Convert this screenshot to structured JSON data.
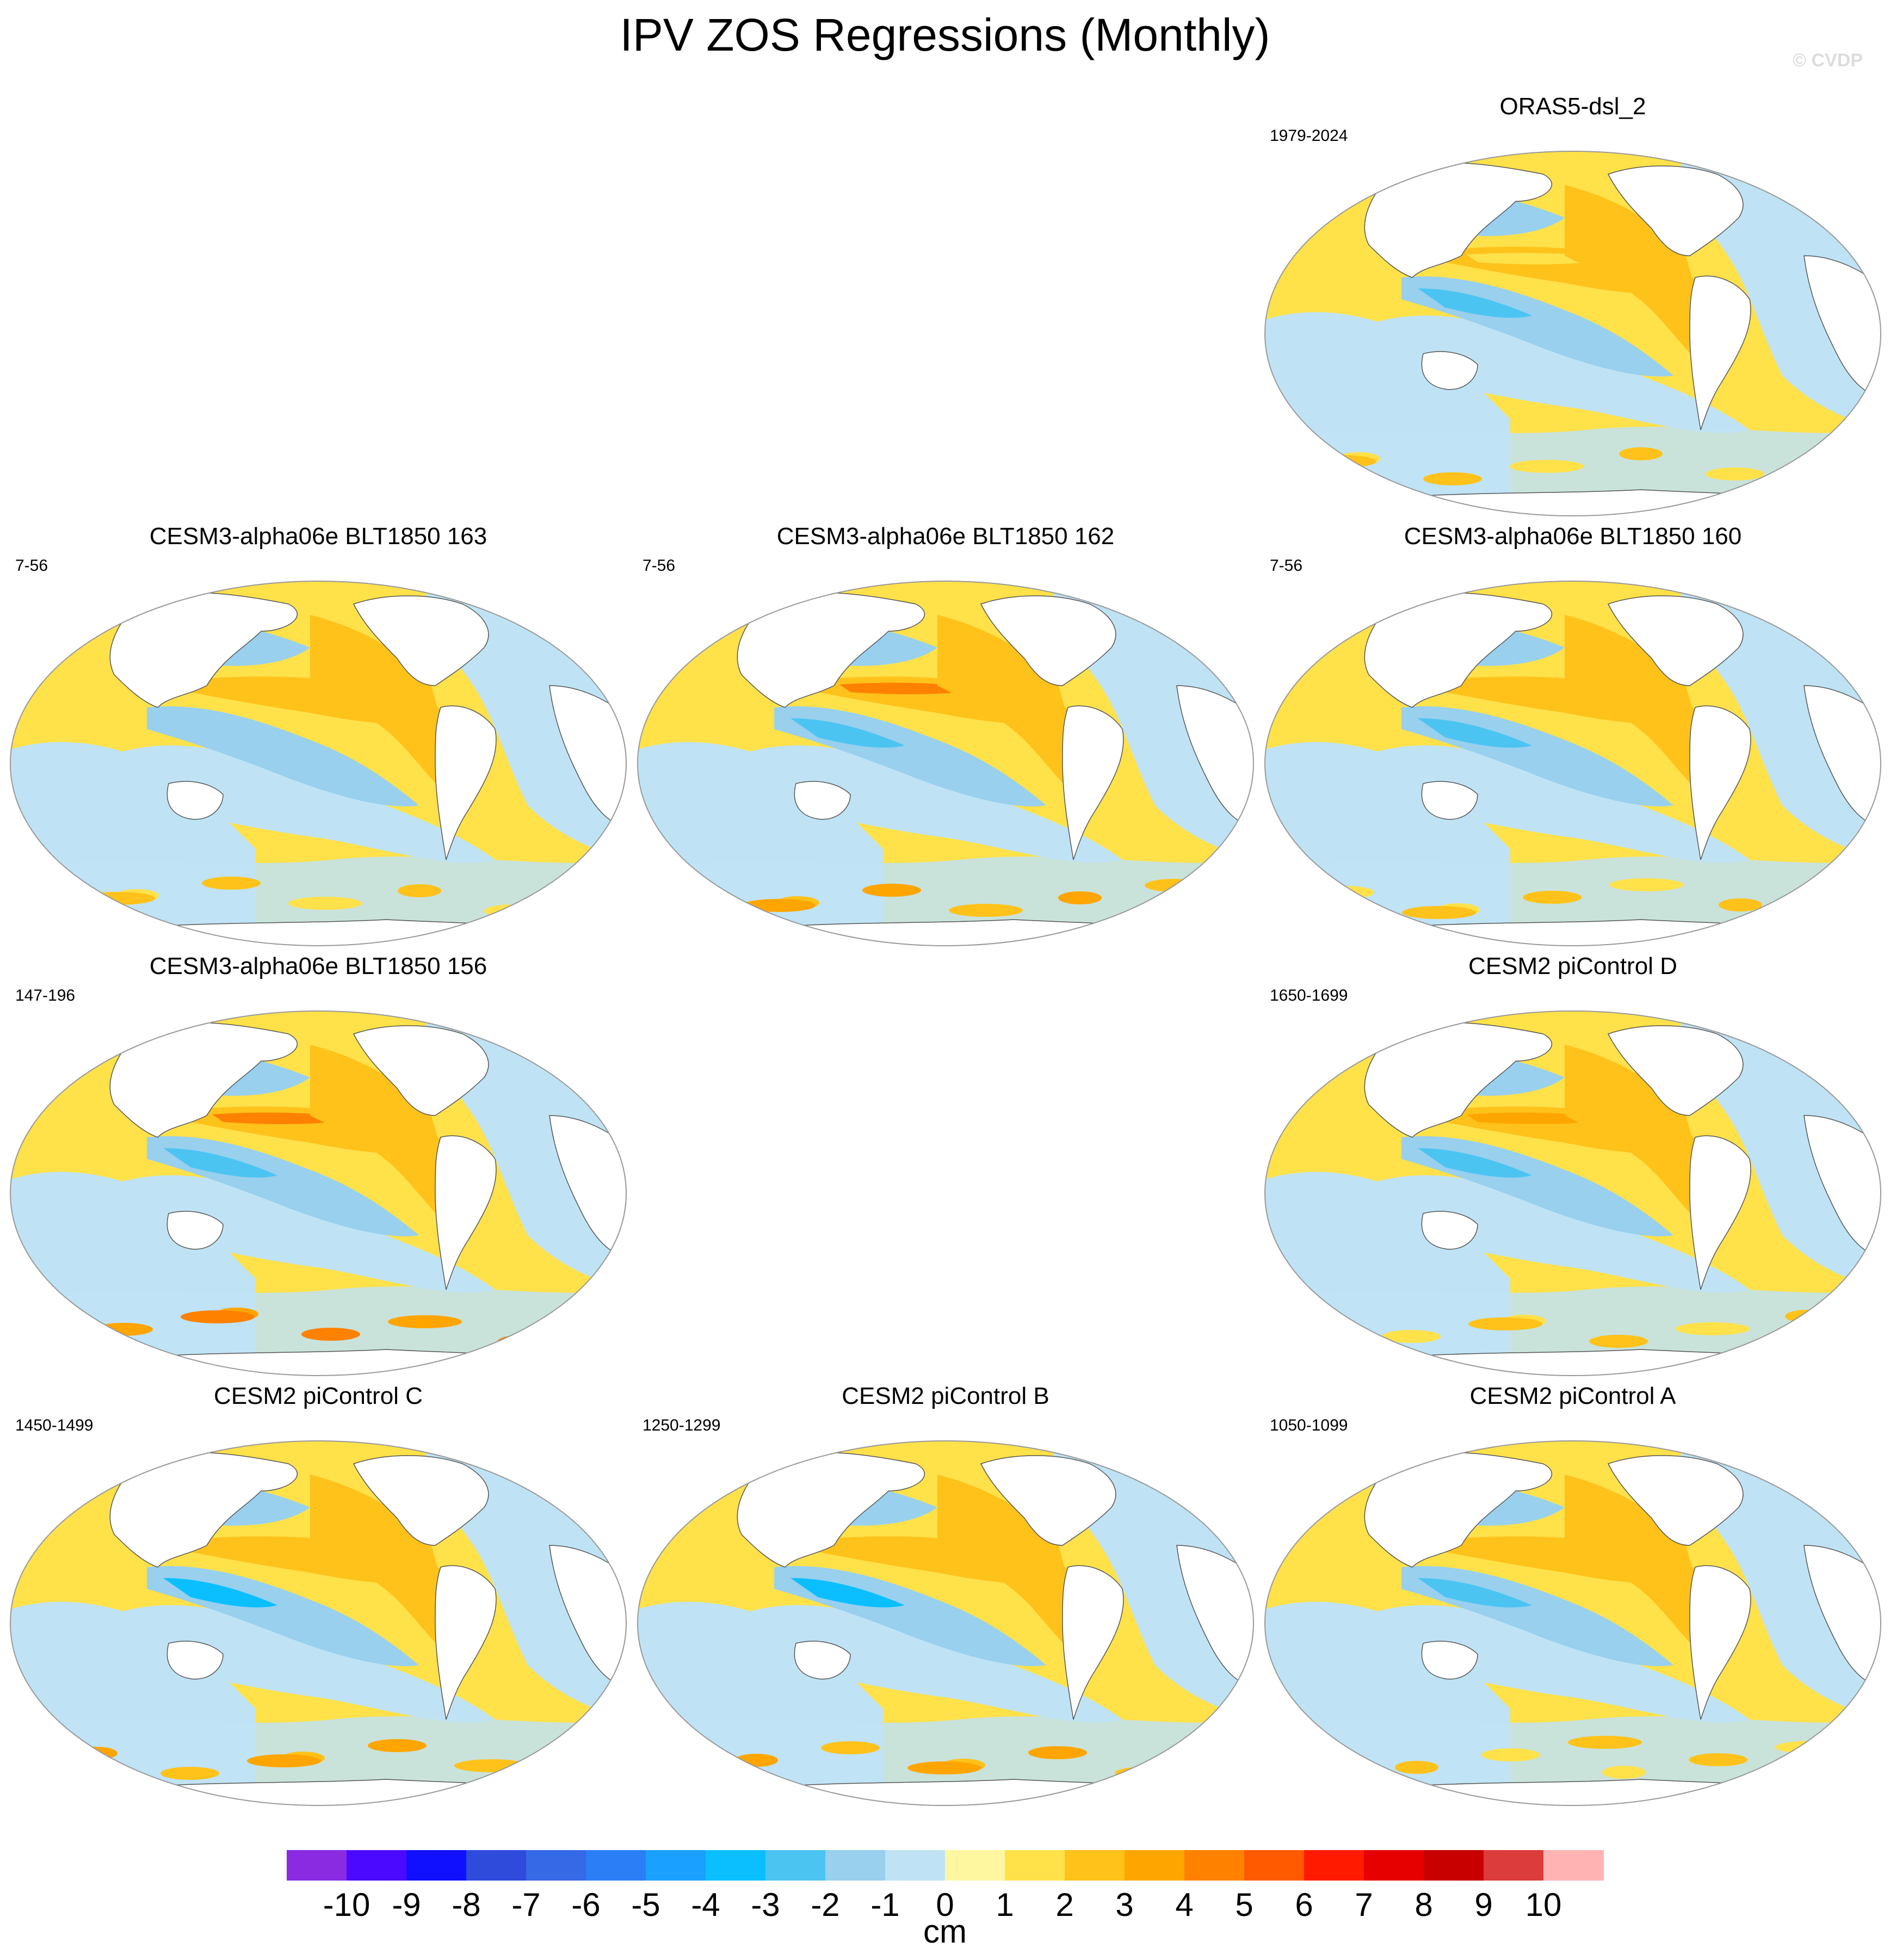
{
  "page": {
    "title": "IPV ZOS Regressions (Monthly)",
    "copyright": "© CVDP"
  },
  "panels": [
    {
      "id": "oras5",
      "title": "ORAS5-dsl_2",
      "period": "1979-2024"
    },
    {
      "id": "cesm3-163",
      "title": "CESM3-alpha06e BLT1850 163",
      "period": "7-56"
    },
    {
      "id": "cesm3-162",
      "title": "CESM3-alpha06e BLT1850 162",
      "period": "7-56"
    },
    {
      "id": "cesm3-160",
      "title": "CESM3-alpha06e BLT1850 160",
      "period": "7-56"
    },
    {
      "id": "cesm3-156",
      "title": "CESM3-alpha06e BLT1850 156",
      "period": "147-196"
    },
    {
      "id": "cesm2-d",
      "title": "CESM2 piControl D",
      "period": "1650-1699"
    },
    {
      "id": "cesm2-c",
      "title": "CESM2 piControl C",
      "period": "1450-1499"
    },
    {
      "id": "cesm2-b",
      "title": "CESM2 piControl B",
      "period": "1250-1299"
    },
    {
      "id": "cesm2-a",
      "title": "CESM2 piControl A",
      "period": "1050-1099"
    }
  ],
  "chart_data": {
    "type": "heatmap",
    "title": "IPV ZOS Regressions (Monthly)",
    "variable": "ZOS regression onto IPV index",
    "units": "cm",
    "colorbar": {
      "label": "cm",
      "ticks": [
        "-10",
        "-9",
        "-8",
        "-7",
        "-6",
        "-5",
        "-4",
        "-3",
        "-2",
        "-1",
        "0",
        "1",
        "2",
        "3",
        "4",
        "5",
        "6",
        "7",
        "8",
        "9",
        "10"
      ],
      "colors": [
        "#8a2be2",
        "#4b0aff",
        "#1010ff",
        "#2e4bdc",
        "#3669e6",
        "#2b7ef5",
        "#1aa0ff",
        "#0bbfff",
        "#4cc4f2",
        "#98d0ee",
        "#bfe3f5",
        "#fff7a0",
        "#ffe14a",
        "#ffc21a",
        "#ffa500",
        "#ff8100",
        "#ff5a00",
        "#ff1a00",
        "#e60000",
        "#c80000",
        "#dc3c3c",
        "#ffb3b3"
      ]
    },
    "series": [
      {
        "name": "ORAS5-dsl_2",
        "period": "1979-2024"
      },
      {
        "name": "CESM3-alpha06e BLT1850 163",
        "period": "7-56"
      },
      {
        "name": "CESM3-alpha06e BLT1850 162",
        "period": "7-56"
      },
      {
        "name": "CESM3-alpha06e BLT1850 160",
        "period": "7-56"
      },
      {
        "name": "CESM3-alpha06e BLT1850 156",
        "period": "147-196"
      },
      {
        "name": "CESM2 piControl D",
        "period": "1650-1699"
      },
      {
        "name": "CESM2 piControl C",
        "period": "1450-1499"
      },
      {
        "name": "CESM2 piControl B",
        "period": "1250-1299"
      },
      {
        "name": "CESM2 piControl A",
        "period": "1050-1099"
      }
    ]
  }
}
